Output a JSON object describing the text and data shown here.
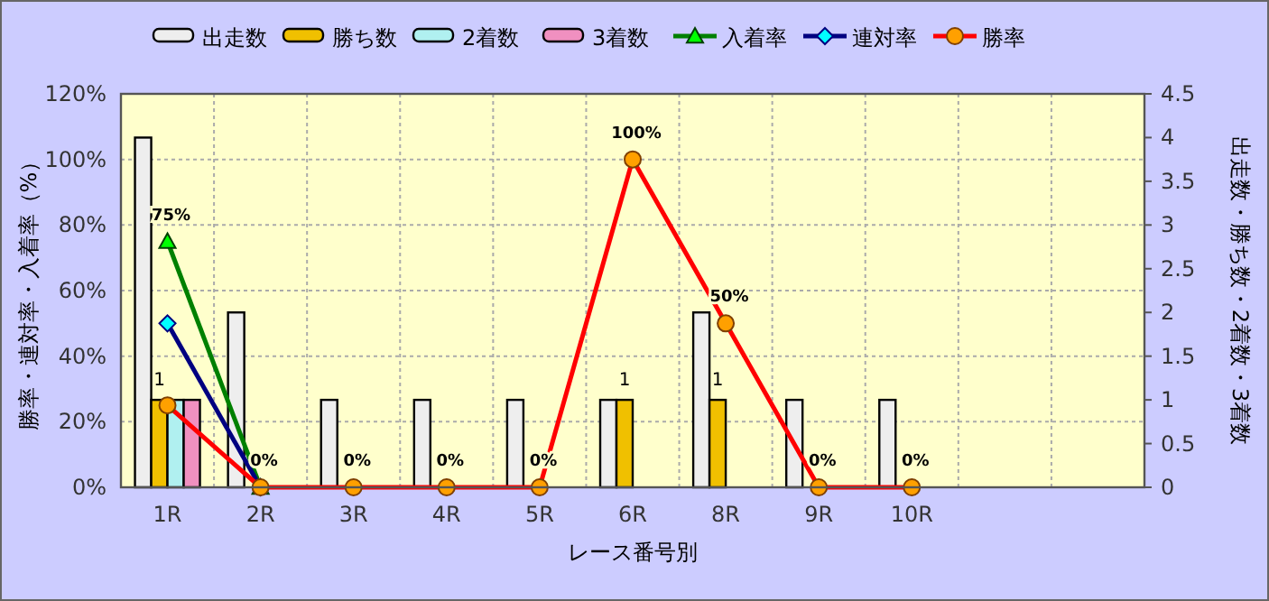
{
  "chart_data": {
    "type": "bar",
    "xlabel": "レース番号別",
    "ylabel": "勝率・連対率・入着率（%）",
    "y2label": "出走数・勝ち数・2着数・3着数",
    "categories": [
      "1R",
      "2R",
      "3R",
      "4R",
      "5R",
      "6R",
      "8R",
      "9R",
      "10R",
      null,
      null
    ],
    "series": [
      {
        "name": "出走数",
        "axis": "y2",
        "color": "#eeeeee",
        "values": [
          4,
          2,
          1,
          1,
          1,
          1,
          2,
          1,
          1,
          null,
          null
        ]
      },
      {
        "name": "勝ち数",
        "axis": "y2",
        "color": "#f0c000",
        "values": [
          1,
          0,
          0,
          0,
          0,
          1,
          1,
          0,
          0,
          null,
          null
        ],
        "value_labels": [
          "1",
          null,
          null,
          null,
          null,
          "1",
          "1",
          null,
          null,
          null,
          null
        ]
      },
      {
        "name": "2着数",
        "axis": "y2",
        "color": "#b0f0f0",
        "values": [
          1,
          0,
          0,
          0,
          0,
          0,
          0,
          0,
          0,
          null,
          null
        ]
      },
      {
        "name": "3着数",
        "axis": "y2",
        "color": "#f090c0",
        "values": [
          1,
          0,
          0,
          0,
          0,
          0,
          0,
          0,
          0,
          null,
          null
        ]
      },
      {
        "name": "入着率",
        "type": "line",
        "color": "#008000",
        "marker": "triangle",
        "values": [
          75,
          0,
          null,
          null,
          null,
          null,
          null,
          null,
          null,
          null,
          null
        ],
        "value_labels": [
          "75%",
          null,
          null,
          null,
          null,
          null,
          null,
          null,
          null,
          null,
          null
        ]
      },
      {
        "name": "連対率",
        "type": "line",
        "color": "#000080",
        "marker": "diamond",
        "values": [
          50,
          0,
          null,
          null,
          null,
          null,
          null,
          null,
          null,
          null,
          null
        ]
      },
      {
        "name": "勝率",
        "type": "line",
        "color": "#ff0000",
        "marker": "circle",
        "values": [
          25,
          0,
          0,
          0,
          0,
          100,
          50,
          0,
          0,
          null,
          null
        ],
        "value_labels": [
          null,
          "0%",
          "0%",
          "0%",
          "0%",
          "100%",
          "50%",
          "0%",
          "0%",
          null,
          null
        ]
      }
    ],
    "ylim": [
      0,
      120
    ],
    "yticks": [
      {
        "value": 0,
        "label": "0%"
      },
      {
        "value": 20,
        "label": "20%"
      },
      {
        "value": 40,
        "label": "40%"
      },
      {
        "value": 60,
        "label": "60%"
      },
      {
        "value": 80,
        "label": "80%"
      },
      {
        "value": 100,
        "label": "100%"
      },
      {
        "value": 120,
        "label": "120%"
      }
    ],
    "y2lim": [
      0,
      4.5
    ],
    "y2ticks": [
      0,
      0.5,
      1,
      1.5,
      2,
      2.5,
      3,
      3.5,
      4,
      4.5
    ],
    "grid": true,
    "legend": "top"
  }
}
